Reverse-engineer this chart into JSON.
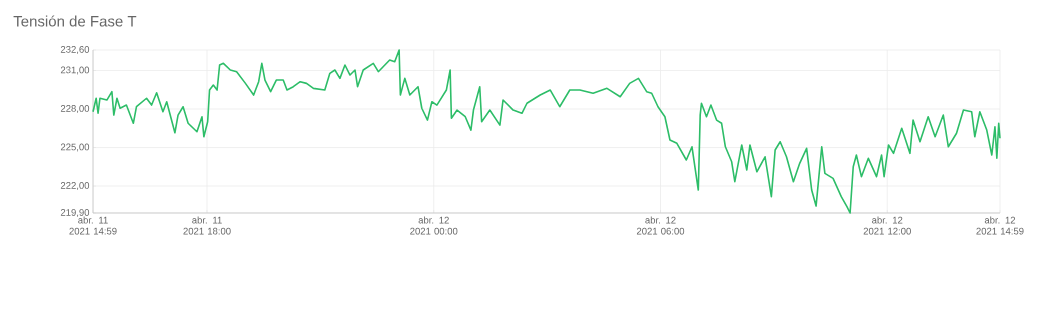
{
  "chart_data": {
    "type": "line",
    "title": "Tensión de Fase T",
    "color": "#2dbd68",
    "marker": "none",
    "grid": true,
    "x": [
      "2021-04-11T14:59",
      "2021-04-11T15:04",
      "2021-04-11T15:07",
      "2021-04-11T15:10",
      "2021-04-11T15:21",
      "2021-04-11T15:29",
      "2021-04-11T15:32",
      "2021-04-11T15:37",
      "2021-04-11T15:42",
      "2021-04-11T15:52",
      "2021-04-11T16:03",
      "2021-04-11T16:08",
      "2021-04-11T16:24",
      "2021-04-11T16:32",
      "2021-04-11T16:40",
      "2021-04-11T16:50",
      "2021-04-11T16:56",
      "2021-04-11T17:09",
      "2021-04-11T17:14",
      "2021-04-11T17:22",
      "2021-04-11T17:30",
      "2021-04-11T17:44",
      "2021-04-11T17:52",
      "2021-04-11T17:55",
      "2021-04-11T18:01",
      "2021-04-11T18:04",
      "2021-04-11T18:10",
      "2021-04-11T18:16",
      "2021-04-11T18:20",
      "2021-04-11T18:26",
      "2021-04-11T18:37",
      "2021-04-11T18:47",
      "2021-04-11T19:01",
      "2021-04-11T19:14",
      "2021-04-11T19:22",
      "2021-04-11T19:27",
      "2021-04-11T19:32",
      "2021-04-11T19:41",
      "2021-04-11T19:50",
      "2021-04-11T20:01",
      "2021-04-11T20:07",
      "2021-04-11T20:17",
      "2021-04-11T20:28",
      "2021-04-11T20:38",
      "2021-04-11T20:49",
      "2021-04-11T21:07",
      "2021-04-11T21:15",
      "2021-04-11T21:23",
      "2021-04-11T21:31",
      "2021-04-11T21:39",
      "2021-04-11T21:47",
      "2021-04-11T21:55",
      "2021-04-11T21:59",
      "2021-04-11T22:08",
      "2021-04-11T22:24",
      "2021-04-11T22:32",
      "2021-04-11T22:50",
      "2021-04-11T22:58",
      "2021-04-11T23:05",
      "2021-04-11T23:07",
      "2021-04-11T23:14",
      "2021-04-11T23:22",
      "2021-04-11T23:35",
      "2021-04-11T23:41",
      "2021-04-11T23:50",
      "2021-04-11T23:57",
      "2021-04-12T00:05",
      "2021-04-12T00:20",
      "2021-04-12T00:26",
      "2021-04-12T00:28",
      "2021-04-12T00:37",
      "2021-04-12T00:50",
      "2021-04-12T00:59",
      "2021-04-12T01:03",
      "2021-04-12T01:13",
      "2021-04-12T01:16",
      "2021-04-12T01:29",
      "2021-04-12T01:45",
      "2021-04-12T01:50",
      "2021-04-12T02:06",
      "2021-04-12T02:20",
      "2021-04-12T02:28",
      "2021-04-12T02:49",
      "2021-04-12T03:05",
      "2021-04-12T03:20",
      "2021-04-12T03:36",
      "2021-04-12T03:52",
      "2021-04-12T04:13",
      "2021-04-12T04:35",
      "2021-04-12T04:56",
      "2021-04-12T05:11",
      "2021-04-12T05:25",
      "2021-04-12T05:38",
      "2021-04-12T05:46",
      "2021-04-12T05:56",
      "2021-04-12T06:07",
      "2021-04-12T06:15",
      "2021-04-12T06:26",
      "2021-04-12T06:41",
      "2021-04-12T06:50",
      "2021-04-12T07:00",
      "2021-04-12T07:03",
      "2021-04-12T07:05",
      "2021-04-12T07:13",
      "2021-04-12T07:20",
      "2021-04-12T07:29",
      "2021-04-12T07:37",
      "2021-04-12T07:43",
      "2021-04-12T07:53",
      "2021-04-12T07:58",
      "2021-04-12T08:09",
      "2021-04-12T08:17",
      "2021-04-12T08:22",
      "2021-04-12T08:33",
      "2021-04-12T08:46",
      "2021-04-12T08:56",
      "2021-04-12T09:02",
      "2021-04-12T09:10",
      "2021-04-12T09:20",
      "2021-04-12T09:31",
      "2021-04-12T09:41",
      "2021-04-12T09:52",
      "2021-04-12T10:00",
      "2021-04-12T10:07",
      "2021-04-12T10:16",
      "2021-04-12T10:21",
      "2021-04-12T10:34",
      "2021-04-12T10:47",
      "2021-04-12T10:56",
      "2021-04-12T11:01",
      "2021-04-12T11:06",
      "2021-04-12T11:11",
      "2021-04-12T11:19",
      "2021-04-12T11:30",
      "2021-04-12T11:43",
      "2021-04-12T11:51",
      "2021-04-12T11:55",
      "2021-04-12T12:02",
      "2021-04-12T12:10",
      "2021-04-12T12:23",
      "2021-04-12T12:36",
      "2021-04-12T12:41",
      "2021-04-12T12:52",
      "2021-04-12T13:05",
      "2021-04-12T13:16",
      "2021-04-12T13:29",
      "2021-04-12T13:37",
      "2021-04-12T13:50",
      "2021-04-12T14:01",
      "2021-04-12T14:14",
      "2021-04-12T14:19",
      "2021-04-12T14:27",
      "2021-04-12T14:38",
      "2021-04-12T14:46",
      "2021-04-12T14:51",
      "2021-04-12T14:54",
      "2021-04-12T14:57",
      "2021-04-12T14:59"
    ],
    "values": [
      227.79,
      228.84,
      227.67,
      228.84,
      228.7,
      229.35,
      227.53,
      228.84,
      228.06,
      228.31,
      226.89,
      228.18,
      228.84,
      228.31,
      229.27,
      227.79,
      228.57,
      226.15,
      227.53,
      228.18,
      226.89,
      226.23,
      227.4,
      225.84,
      227.01,
      229.48,
      229.87,
      229.48,
      231.43,
      231.56,
      231.04,
      230.91,
      230.0,
      229.09,
      230.13,
      231.56,
      230.26,
      229.35,
      230.26,
      230.26,
      229.48,
      229.74,
      230.13,
      230.0,
      229.61,
      229.48,
      230.78,
      231.04,
      230.39,
      231.43,
      230.65,
      231.04,
      229.74,
      231.04,
      231.56,
      230.91,
      231.82,
      231.69,
      232.6,
      229.09,
      230.39,
      229.09,
      229.74,
      228.06,
      227.14,
      228.57,
      228.31,
      229.48,
      231.04,
      227.28,
      227.92,
      227.4,
      226.36,
      227.92,
      229.74,
      227.01,
      227.92,
      226.75,
      228.7,
      227.92,
      227.67,
      228.45,
      229.09,
      229.48,
      228.18,
      229.48,
      229.48,
      229.23,
      229.61,
      228.96,
      230.0,
      230.39,
      229.35,
      229.23,
      228.18,
      227.4,
      225.59,
      225.33,
      224.03,
      225.06,
      221.69,
      227.53,
      228.45,
      227.4,
      228.31,
      227.14,
      226.89,
      225.06,
      223.89,
      222.34,
      225.2,
      223.25,
      225.2,
      223.11,
      224.28,
      221.17,
      224.81,
      225.45,
      224.28,
      222.34,
      223.77,
      224.94,
      221.69,
      220.44,
      225.06,
      222.99,
      222.6,
      221.17,
      220.39,
      219.9,
      223.5,
      224.42,
      222.73,
      224.16,
      222.73,
      224.42,
      222.73,
      225.2,
      224.55,
      226.5,
      224.55,
      227.14,
      225.45,
      227.4,
      225.84,
      227.53,
      225.06,
      226.11,
      227.92,
      227.79,
      225.84,
      227.79,
      226.36,
      224.42,
      226.62,
      224.16,
      226.89,
      225.72
    ],
    "xlim": [
      "2021-04-11T14:59",
      "2021-04-12T14:59"
    ],
    "xticks": [
      {
        "value": "2021-04-11T14:59",
        "label": "abr. 11 2021 14:59"
      },
      {
        "value": "2021-04-11T18:00",
        "label": "abr. 11 2021 18:00"
      },
      {
        "value": "2021-04-12T00:00",
        "label": "abr. 12 2021 00:00"
      },
      {
        "value": "2021-04-12T06:00",
        "label": "abr. 12 2021 06:00"
      },
      {
        "value": "2021-04-12T12:00",
        "label": "abr. 12 2021 12:00"
      },
      {
        "value": "2021-04-12T14:59",
        "label": "abr. 12 2021 14:59"
      }
    ],
    "ylim": [
      219.9,
      232.6
    ],
    "yticks": [
      {
        "value": 219.9,
        "label": "219,90"
      },
      {
        "value": 222,
        "label": "222,00"
      },
      {
        "value": 225,
        "label": "225,00"
      },
      {
        "value": 228,
        "label": "228,00"
      },
      {
        "value": 231,
        "label": "231,00"
      },
      {
        "value": 232.6,
        "label": "232,60"
      }
    ]
  }
}
